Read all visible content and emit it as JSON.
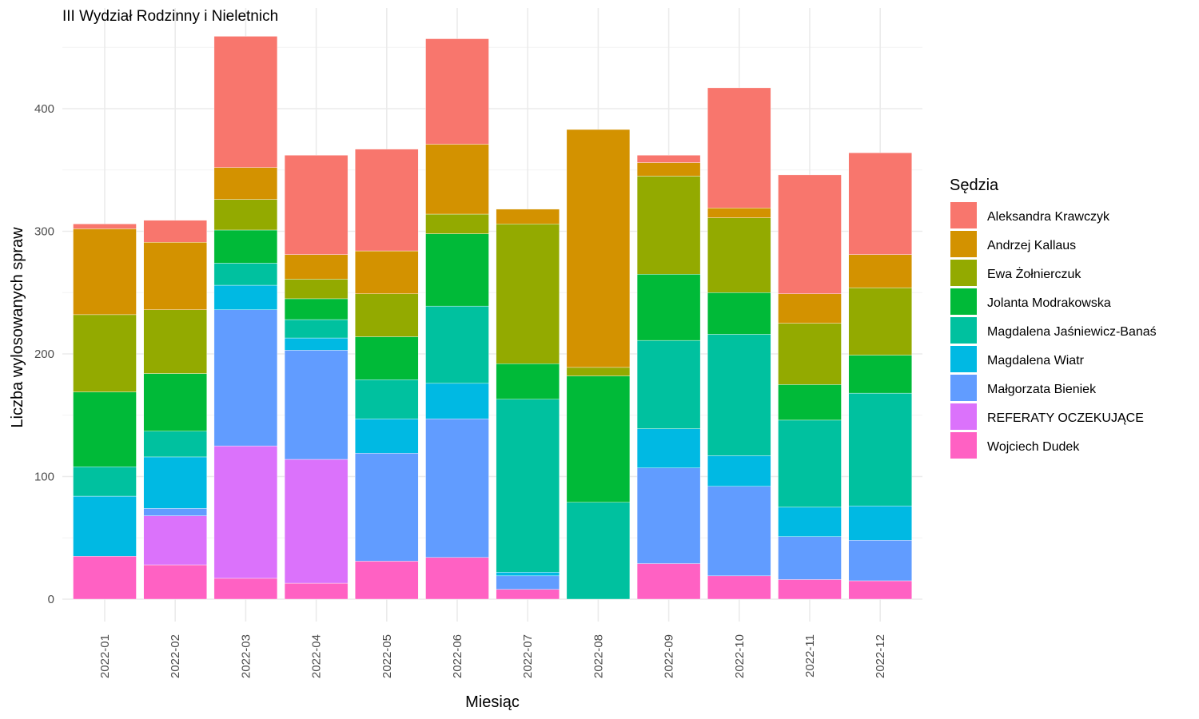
{
  "chart_data": {
    "type": "bar",
    "stacked": true,
    "title": "III Wydział Rodzinny i Nieletnich",
    "xlabel": "Miesiąc",
    "ylabel": "Liczba wylosowanych spraw",
    "ylim": [
      0,
      480
    ],
    "yticks": [
      0,
      100,
      200,
      300,
      400
    ],
    "grid": true,
    "legend_title": "Sędzia",
    "legend_position": "right",
    "categories": [
      "2022-01",
      "2022-02",
      "2022-03",
      "2022-04",
      "2022-05",
      "2022-06",
      "2022-07",
      "2022-08",
      "2022-09",
      "2022-10",
      "2022-11",
      "2022-12"
    ],
    "series": [
      {
        "name": "Wojciech Dudek",
        "color": "#FF61C3",
        "values": [
          35,
          28,
          17,
          13,
          31,
          34,
          8,
          0,
          29,
          19,
          16,
          15
        ]
      },
      {
        "name": "REFERATY OCZEKUJĄCE",
        "color": "#DB72FB",
        "values": [
          0,
          40,
          108,
          101,
          0,
          0,
          0,
          0,
          0,
          0,
          0,
          0
        ]
      },
      {
        "name": "Małgorzata Bieniek",
        "color": "#619CFF",
        "values": [
          0,
          6,
          111,
          89,
          88,
          113,
          11,
          0,
          78,
          73,
          35,
          33
        ]
      },
      {
        "name": "Magdalena Wiatr",
        "color": "#00B9E3",
        "values": [
          49,
          42,
          20,
          10,
          28,
          29,
          3,
          0,
          32,
          25,
          24,
          28
        ]
      },
      {
        "name": "Magdalena Jaśniewicz-Banaś",
        "color": "#00C19F",
        "values": [
          24,
          21,
          18,
          15,
          32,
          63,
          141,
          79,
          72,
          99,
          71,
          92
        ]
      },
      {
        "name": "Jolanta Modrakowska",
        "color": "#00BA38",
        "values": [
          61,
          47,
          27,
          17,
          35,
          59,
          29,
          103,
          54,
          34,
          29,
          31
        ]
      },
      {
        "name": "Ewa Żołnierczuk",
        "color": "#93AA00",
        "values": [
          63,
          52,
          25,
          16,
          35,
          16,
          114,
          7,
          80,
          61,
          50,
          55
        ]
      },
      {
        "name": "Andrzej Kallaus",
        "color": "#D39200",
        "values": [
          70,
          55,
          26,
          20,
          35,
          57,
          12,
          194,
          11,
          8,
          24,
          27
        ]
      },
      {
        "name": "Aleksandra Krawczyk",
        "color": "#F8766D",
        "values": [
          4,
          18,
          107,
          81,
          83,
          86,
          0,
          0,
          6,
          98,
          97,
          83
        ]
      }
    ]
  }
}
